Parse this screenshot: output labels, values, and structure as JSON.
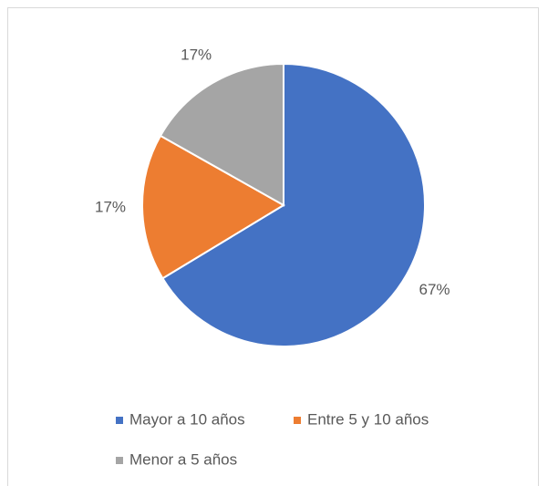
{
  "chart_data": {
    "type": "pie",
    "categories": [
      "Mayor a 10 años",
      "Entre 5 y 10 años",
      "Menor a 5 años"
    ],
    "values": [
      67,
      17,
      17
    ],
    "value_labels": [
      "67%",
      "17%",
      "17%"
    ],
    "colors": [
      "#4472c4",
      "#ed7d31",
      "#a5a5a5"
    ]
  }
}
